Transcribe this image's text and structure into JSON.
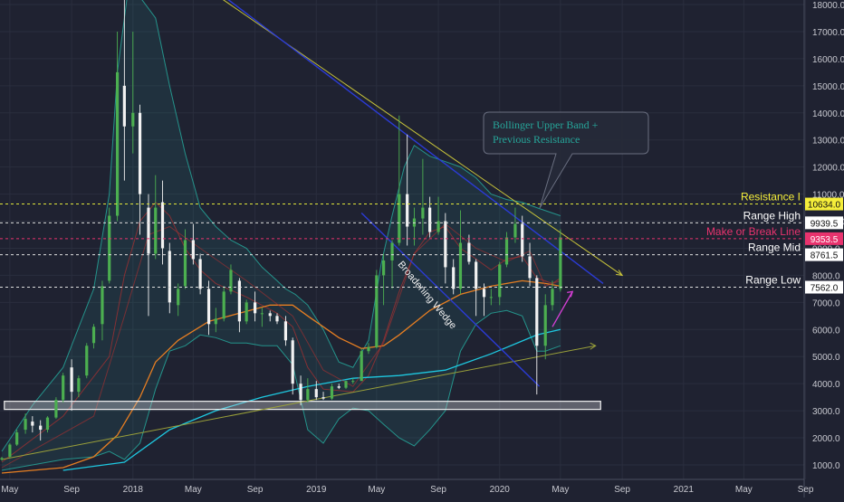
{
  "chart_data": {
    "type": "candlestick",
    "y_axis": {
      "min": 500,
      "max": 18300,
      "ticks": [
        1000,
        2000,
        3000,
        4000,
        5000,
        6000,
        7000,
        8000,
        9000,
        10000,
        11000,
        12000,
        13000,
        14000,
        15000,
        16000,
        17000,
        18000
      ],
      "tick_labels": [
        "1000.0",
        "2000.0",
        "3000.0",
        "4000.0",
        "5000.0",
        "6000.0",
        "7000.0",
        "8000.0",
        "9000.0",
        "10000.0",
        "11000.0",
        "12000.0",
        "13000.0",
        "14000.0",
        "15000.0",
        "16000.0",
        "17000.0",
        "18000.0"
      ]
    },
    "x_axis": {
      "range": [
        "2017-04-15",
        "2021-10-15"
      ],
      "ticks": [
        {
          "date": "2017-05-01",
          "label": "May"
        },
        {
          "date": "2017-09-01",
          "label": "Sep"
        },
        {
          "date": "2018-01-01",
          "label": "2018"
        },
        {
          "date": "2018-05-01",
          "label": "May"
        },
        {
          "date": "2018-09-01",
          "label": "Sep"
        },
        {
          "date": "2019-01-01",
          "label": "2019"
        },
        {
          "date": "2019-05-01",
          "label": "May"
        },
        {
          "date": "2019-09-01",
          "label": "Sep"
        },
        {
          "date": "2020-01-01",
          "label": "2020"
        },
        {
          "date": "2020-05-01",
          "label": "May"
        },
        {
          "date": "2020-09-01",
          "label": "Sep"
        },
        {
          "date": "2021-01-01",
          "label": "2021"
        },
        {
          "date": "2021-05-01",
          "label": "May"
        },
        {
          "date": "2021-09-01",
          "label": "Sep"
        }
      ]
    },
    "candles": [
      [
        "2017-04-15",
        1200,
        1300,
        1150,
        1250
      ],
      [
        "2017-05-01",
        1300,
        1800,
        1250,
        1750
      ],
      [
        "2017-05-15",
        1750,
        2300,
        1700,
        2200
      ],
      [
        "2017-06-01",
        2300,
        2900,
        2150,
        2700
      ],
      [
        "2017-06-15",
        2600,
        2800,
        2200,
        2450
      ],
      [
        "2017-07-01",
        2450,
        2650,
        1900,
        2300
      ],
      [
        "2017-07-15",
        2300,
        2800,
        2200,
        2750
      ],
      [
        "2017-08-01",
        2750,
        3500,
        2700,
        3400
      ],
      [
        "2017-08-15",
        3400,
        4400,
        3300,
        4300
      ],
      [
        "2017-09-01",
        4600,
        4900,
        3000,
        3700
      ],
      [
        "2017-09-15",
        3700,
        4300,
        3500,
        4200
      ],
      [
        "2017-10-01",
        4300,
        5500,
        4200,
        5400
      ],
      [
        "2017-10-15",
        5500,
        6200,
        5300,
        6100
      ],
      [
        "2017-11-01",
        6200,
        7800,
        5600,
        7600
      ],
      [
        "2017-11-15",
        7800,
        10500,
        7700,
        10200
      ],
      [
        "2017-12-01",
        10200,
        17000,
        10000,
        15500
      ],
      [
        "2017-12-15",
        15000,
        18300,
        11500,
        13500
      ],
      [
        "2018-01-01",
        13500,
        17000,
        12500,
        14000
      ],
      [
        "2018-01-15",
        14000,
        14300,
        9500,
        11000
      ],
      [
        "2018-02-01",
        10500,
        11000,
        6500,
        8800
      ],
      [
        "2018-02-15",
        8800,
        11700,
        8600,
        10500
      ],
      [
        "2018-03-01",
        10700,
        11500,
        8400,
        9000
      ],
      [
        "2018-03-15",
        8900,
        9200,
        6600,
        7000
      ],
      [
        "2018-04-01",
        6900,
        7700,
        6500,
        7500
      ],
      [
        "2018-04-15",
        7600,
        9700,
        7500,
        9300
      ],
      [
        "2018-05-01",
        9300,
        9900,
        8400,
        8600
      ],
      [
        "2018-05-15",
        8600,
        8800,
        7300,
        7500
      ],
      [
        "2018-06-01",
        7500,
        7800,
        5800,
        6200
      ],
      [
        "2018-06-15",
        6200,
        6800,
        5900,
        6400
      ],
      [
        "2018-07-01",
        6400,
        7600,
        6300,
        7400
      ],
      [
        "2018-07-15",
        7400,
        8400,
        7300,
        8200
      ],
      [
        "2018-08-01",
        7800,
        7900,
        5900,
        6300
      ],
      [
        "2018-08-15",
        6300,
        7100,
        6200,
        7000
      ],
      [
        "2018-09-01",
        7000,
        7400,
        6300,
        6600
      ],
      [
        "2018-09-15",
        6600,
        6800,
        6100,
        6600
      ],
      [
        "2018-10-01",
        6600,
        6700,
        6300,
        6500
      ],
      [
        "2018-10-15",
        6500,
        6600,
        6200,
        6300
      ],
      [
        "2018-11-01",
        6300,
        6500,
        5400,
        5600
      ],
      [
        "2018-11-15",
        5600,
        5700,
        3600,
        4000
      ],
      [
        "2018-12-01",
        4000,
        4300,
        3200,
        3400
      ],
      [
        "2018-12-15",
        3400,
        4200,
        3300,
        3800
      ],
      [
        "2019-01-01",
        3800,
        4100,
        3400,
        3500
      ],
      [
        "2019-01-15",
        3500,
        3700,
        3400,
        3450
      ],
      [
        "2019-02-01",
        3450,
        4000,
        3400,
        3900
      ],
      [
        "2019-02-15",
        3900,
        4000,
        3800,
        3850
      ],
      [
        "2019-03-01",
        3850,
        4100,
        3800,
        4100
      ],
      [
        "2019-03-15",
        4100,
        4200,
        4000,
        4100
      ],
      [
        "2019-04-01",
        4100,
        5300,
        4100,
        5200
      ],
      [
        "2019-04-15",
        5200,
        5500,
        5100,
        5350
      ],
      [
        "2019-05-01",
        5350,
        8200,
        5300,
        8000
      ],
      [
        "2019-05-15",
        8000,
        8800,
        6900,
        8550
      ],
      [
        "2019-06-01",
        8550,
        9300,
        7500,
        9200
      ],
      [
        "2019-06-15",
        9200,
        13900,
        9100,
        11000
      ],
      [
        "2019-07-01",
        11000,
        13200,
        9100,
        9800
      ],
      [
        "2019-07-15",
        9800,
        10500,
        9100,
        10100
      ],
      [
        "2019-08-01",
        10100,
        12300,
        9500,
        10500
      ],
      [
        "2019-08-15",
        10500,
        10900,
        9400,
        9600
      ],
      [
        "2019-09-01",
        9600,
        10900,
        9500,
        10000
      ],
      [
        "2019-09-15",
        10000,
        10300,
        7700,
        8300
      ],
      [
        "2019-10-01",
        8300,
        8600,
        7300,
        7500
      ],
      [
        "2019-10-15",
        7500,
        10400,
        7300,
        9200
      ],
      [
        "2019-11-01",
        9200,
        9500,
        8400,
        8500
      ],
      [
        "2019-11-15",
        8500,
        8600,
        6500,
        7500
      ],
      [
        "2019-12-01",
        7500,
        7700,
        6500,
        7200
      ],
      [
        "2019-12-15",
        7200,
        7500,
        6900,
        7200
      ],
      [
        "2020-01-01",
        7200,
        8500,
        6900,
        8400
      ],
      [
        "2020-01-15",
        8400,
        9600,
        8300,
        9400
      ],
      [
        "2020-02-01",
        9400,
        10500,
        9200,
        9900
      ],
      [
        "2020-02-15",
        9900,
        10200,
        8500,
        8700
      ],
      [
        "2020-03-01",
        8700,
        9200,
        7600,
        7900
      ],
      [
        "2020-03-15",
        7900,
        8000,
        3600,
        5400
      ],
      [
        "2020-04-01",
        5400,
        7300,
        4900,
        6900
      ],
      [
        "2020-04-15",
        6900,
        7800,
        6700,
        7500
      ],
      [
        "2020-05-01",
        7500,
        9700,
        7400,
        9400
      ]
    ],
    "annotations": {
      "price_lines": [
        {
          "label": "Resistance I",
          "value_label": "10634.0",
          "value": 10634,
          "line_color": "#e0e63a",
          "label_color": "#f5ee3a",
          "box_color": "#f5ee3a",
          "box_text_color": "#101010"
        },
        {
          "label": "Range High",
          "value_label": "9939.5",
          "value": 9939.5,
          "line_color": "#dddddd",
          "label_color": "#ffffff",
          "box_color": "#ffffff",
          "box_text_color": "#101010"
        },
        {
          "label": "Make or Break Line",
          "value_label": "9353.5",
          "value": 9353.5,
          "line_color": "#e8336e",
          "label_color": "#e8336e",
          "box_color": "#e8336e",
          "box_text_color": "#ffffff"
        },
        {
          "label": "Range Mid",
          "value_label": "8761.5",
          "value": 8761.5,
          "line_color": "#dddddd",
          "label_color": "#ffffff",
          "box_color": "#ffffff",
          "box_text_color": "#101010"
        },
        {
          "label": "Range Low",
          "value_label": "7562.0",
          "value": 7562,
          "line_color": "#dddddd",
          "label_color": "#ffffff",
          "box_color": "#ffffff",
          "box_text_color": "#101010"
        }
      ],
      "wedge_label": "Broadening Wedge",
      "callout_text": "Bollinger Upper Band + Previous Resistance",
      "support_box": {
        "from": "2017-04-20",
        "to": "2020-07-20",
        "low": 3050,
        "high": 3350
      }
    },
    "colors": {
      "background": "#1f2231",
      "candle_up": "#4caf50",
      "candle_down": "#f2f2f2",
      "bollinger": "#26a69a",
      "ma_orange": "#e67e22",
      "ma_cyan": "#1ec8e0",
      "ma_red": "#b03030",
      "trend_yellow": "#c8c43a",
      "trend_blue": "#2b3bd6",
      "support_olive": "#9aa03a",
      "axis_text": "#c8c9d0"
    }
  }
}
